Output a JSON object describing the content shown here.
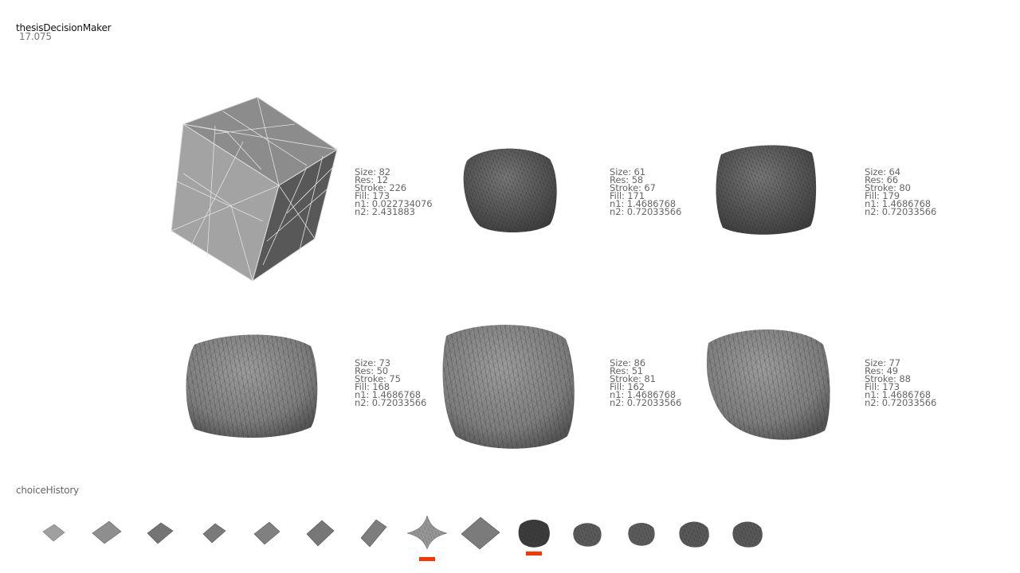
{
  "app": {
    "title": "thesisDecisionMaker",
    "value": "17.075"
  },
  "colors": {
    "marker": "#ff3300",
    "shape_light": "#9a9a9a",
    "shape_dark": "#4a4a4a"
  },
  "candidates": [
    {
      "size_line": "Size: 82",
      "res_line": "Res: 12",
      "stroke_line": "Stroke: 226",
      "fill_line": "Fill: 173",
      "n1_line": "n1: 0.022734076",
      "n2_line": "n2: 2.431883"
    },
    {
      "size_line": "Size: 61",
      "res_line": "Res: 58",
      "stroke_line": "Stroke: 67",
      "fill_line": "Fill: 171",
      "n1_line": "n1: 1.4686768",
      "n2_line": "n2: 0.72033566"
    },
    {
      "size_line": "Size: 64",
      "res_line": "Res: 66",
      "stroke_line": "Stroke: 80",
      "fill_line": "Fill: 179",
      "n1_line": "n1: 1.4686768",
      "n2_line": "n2: 0.72033566"
    },
    {
      "size_line": "Size: 73",
      "res_line": "Res: 50",
      "stroke_line": "Stroke: 75",
      "fill_line": "Fill: 168",
      "n1_line": "n1: 1.4686768",
      "n2_line": "n2: 0.72033566"
    },
    {
      "size_line": "Size: 86",
      "res_line": "Res: 51",
      "stroke_line": "Stroke: 81",
      "fill_line": "Fill: 162",
      "n1_line": "n1: 1.4686768",
      "n2_line": "n2: 0.72033566"
    },
    {
      "size_line": "Size: 77",
      "res_line": "Res: 49",
      "stroke_line": "Stroke: 88",
      "fill_line": "Fill: 173",
      "n1_line": "n1: 1.4686768",
      "n2_line": "n2: 0.72033566"
    }
  ],
  "history": {
    "label": "choiceHistory",
    "count": 14,
    "selected": [
      8,
      10
    ]
  }
}
